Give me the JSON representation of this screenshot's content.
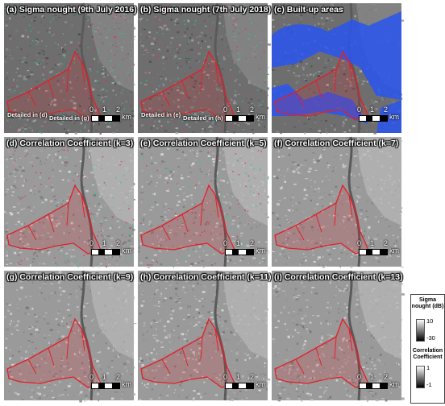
{
  "panels": [
    {
      "title": "(a) Sigma nought (9th July 2016)",
      "kind": "sar",
      "notes": [
        "Detailed in (d)",
        "Detailed in (g)"
      ],
      "scale": [
        "0",
        "1",
        "2"
      ],
      "unit": "km"
    },
    {
      "title": "(b) Sigma nought (7th July 2018)",
      "kind": "sar",
      "notes": [
        "Detailed in (e)",
        "Detailed in (h)"
      ],
      "scale": [
        "0",
        "1",
        "2"
      ],
      "unit": "km"
    },
    {
      "title": "(c) Built-up areas",
      "kind": "builtup",
      "notes": [],
      "scale": [
        "0",
        "1",
        "2"
      ],
      "unit": "km"
    },
    {
      "title": "(d) Correlation Coefficient (k=3)",
      "kind": "corr",
      "notes": [],
      "scale": [
        "0",
        "1",
        "2"
      ],
      "unit": "km"
    },
    {
      "title": "(e) Correlation Coefficient (k=5)",
      "kind": "corr",
      "notes": [],
      "scale": [
        "0",
        "1",
        "2"
      ],
      "unit": "km"
    },
    {
      "title": "(f) Correlation Coefficient (k=7)",
      "kind": "corr",
      "notes": [],
      "scale": [
        "0",
        "1",
        "2"
      ],
      "unit": "km"
    },
    {
      "title": "(g) Correlation Coefficient (k=9)",
      "kind": "corr",
      "notes": [],
      "scale": [
        "0",
        "1",
        "2"
      ],
      "unit": "km"
    },
    {
      "title": "(h) Correlation Coefficient (k=11)",
      "kind": "corr",
      "notes": [],
      "scale": [
        "0",
        "1",
        "2"
      ],
      "unit": "km"
    },
    {
      "title": "(i) Correlation Coefficient (k=13)",
      "kind": "corr",
      "notes": [],
      "scale": [
        "0",
        "1",
        "2"
      ],
      "unit": "km"
    }
  ],
  "legend": {
    "sigma_title": "Sigma nought (dB)",
    "sigma_max": "10",
    "sigma_min": "-30",
    "corr_title": "Correlation Coefficient",
    "corr_max": "1",
    "corr_min": "-1"
  },
  "colors": {
    "flood_outline": "#e0202a",
    "builtup": "#2a55f0",
    "river": "#5a5a5a"
  }
}
